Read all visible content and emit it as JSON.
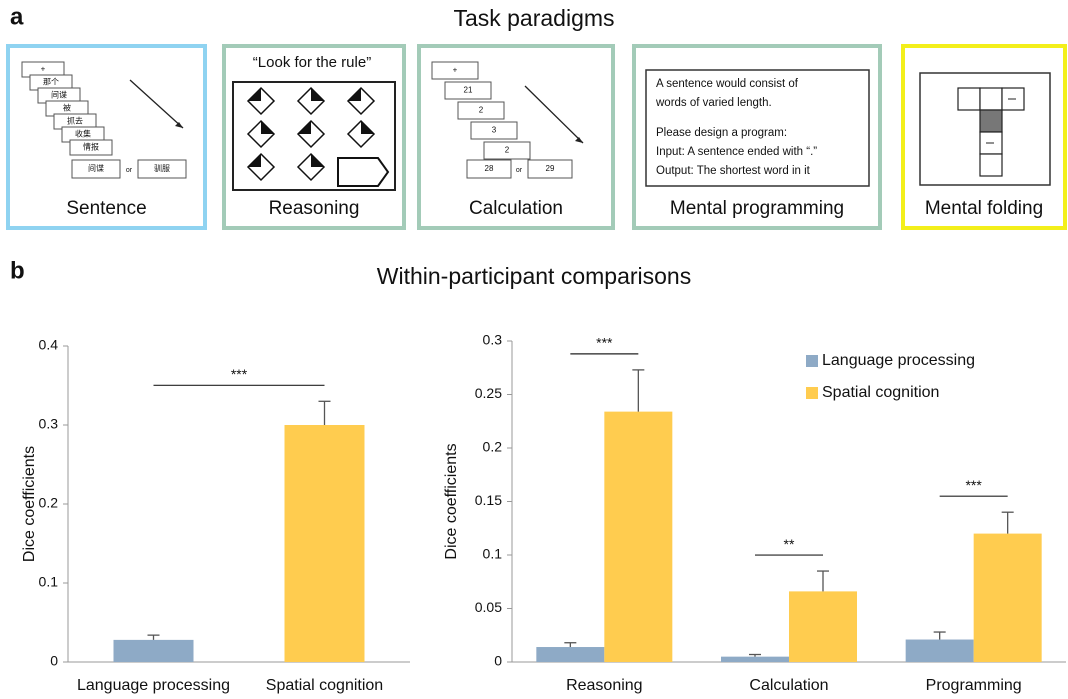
{
  "panel_a": {
    "label": "a",
    "title": "Task paradigms",
    "sentence": {
      "name": "Sentence",
      "words": [
        "+",
        "那个",
        "间谍",
        "被",
        "抓去",
        "收集",
        "情报"
      ],
      "choices": [
        "间谍",
        "or",
        "驯服"
      ]
    },
    "reasoning": {
      "name": "Reasoning",
      "prompt": "“Look for the rule”"
    },
    "calculation": {
      "name": "Calculation",
      "items": [
        "+",
        "21",
        "2",
        "3",
        "2"
      ],
      "choices": [
        "28",
        "or",
        "29"
      ]
    },
    "programming": {
      "name": "Mental programming",
      "lines": [
        "A sentence would consist of",
        "words of varied length.",
        "Please design a program:",
        "Input: A sentence ended with “.”",
        "Output: The shortest word in it"
      ]
    },
    "folding": {
      "name": "Mental folding"
    }
  },
  "panel_b": {
    "label": "b",
    "title": "Within-participant comparisons"
  },
  "chart_data": [
    {
      "type": "bar",
      "y_label": "Dice coefficients",
      "categories": [
        "Language processing",
        "Spatial cognition"
      ],
      "values": [
        0.028,
        0.3
      ],
      "errors": [
        0.006,
        0.03
      ],
      "colors": [
        "#8eaac6",
        "#ffcc4f"
      ],
      "ylim": [
        0,
        0.4
      ],
      "yticks": [
        0,
        0.1,
        0.2,
        0.3,
        0.4
      ],
      "annotations": [
        "***"
      ]
    },
    {
      "type": "grouped_bar",
      "y_label": "Dice coefficients",
      "categories": [
        "Reasoning",
        "Calculation",
        "Programming"
      ],
      "series": [
        {
          "name": "Language processing",
          "color": "#8eaac6",
          "values": [
            0.014,
            0.005,
            0.021
          ],
          "errors": [
            0.004,
            0.002,
            0.007
          ]
        },
        {
          "name": "Spatial cognition",
          "color": "#ffcc4f",
          "values": [
            0.234,
            0.066,
            0.12
          ],
          "errors": [
            0.039,
            0.019,
            0.02
          ]
        }
      ],
      "ylim": [
        0,
        0.3
      ],
      "yticks": [
        0,
        0.05,
        0.1,
        0.15,
        0.2,
        0.25,
        0.3
      ],
      "annotations": [
        "***",
        "**",
        "***"
      ],
      "legend": "top-right"
    }
  ]
}
